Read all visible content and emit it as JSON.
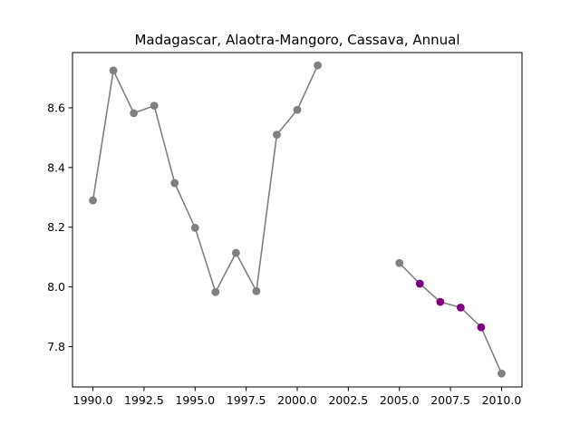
{
  "chart_data": {
    "type": "line",
    "title": "Madagascar, Alaotra-Mangoro, Cassava, Annual",
    "xlabel": "",
    "ylabel": "",
    "xlim": [
      1989.0,
      2011.0
    ],
    "ylim": [
      7.665,
      8.785
    ],
    "xticks": [
      1990.0,
      1992.5,
      1995.0,
      1997.5,
      2000.0,
      2002.5,
      2005.0,
      2007.5,
      2010.0
    ],
    "xtick_labels": [
      "1990.0",
      "1992.5",
      "1995.0",
      "1997.5",
      "2000.0",
      "2002.5",
      "2005.0",
      "2007.5",
      "2010.0"
    ],
    "yticks": [
      7.8,
      8.0,
      8.2,
      8.4,
      8.6
    ],
    "ytick_labels": [
      "7.8",
      "8.0",
      "8.2",
      "8.4",
      "8.6"
    ],
    "grid": false,
    "line_color": "#808080",
    "segments": [
      {
        "points": [
          {
            "x": 1990,
            "y": 8.29,
            "color": "#808080"
          },
          {
            "x": 1991,
            "y": 8.725,
            "color": "#808080"
          },
          {
            "x": 1992,
            "y": 8.582,
            "color": "#808080"
          },
          {
            "x": 1993,
            "y": 8.607,
            "color": "#808080"
          },
          {
            "x": 1994,
            "y": 8.348,
            "color": "#808080"
          },
          {
            "x": 1995,
            "y": 8.198,
            "color": "#808080"
          },
          {
            "x": 1996,
            "y": 7.983,
            "color": "#808080"
          },
          {
            "x": 1997,
            "y": 8.114,
            "color": "#808080"
          },
          {
            "x": 1998,
            "y": 7.986,
            "color": "#808080"
          },
          {
            "x": 1999,
            "y": 8.51,
            "color": "#808080"
          },
          {
            "x": 2000,
            "y": 8.593,
            "color": "#808080"
          },
          {
            "x": 2001,
            "y": 8.742,
            "color": "#808080"
          }
        ]
      },
      {
        "points": [
          {
            "x": 2005,
            "y": 8.08,
            "color": "#808080"
          },
          {
            "x": 2006,
            "y": 8.011,
            "color": "#800080"
          },
          {
            "x": 2007,
            "y": 7.95,
            "color": "#800080"
          },
          {
            "x": 2008,
            "y": 7.931,
            "color": "#800080"
          },
          {
            "x": 2009,
            "y": 7.865,
            "color": "#800080"
          },
          {
            "x": 2010,
            "y": 7.71,
            "color": "#808080"
          }
        ]
      }
    ]
  }
}
